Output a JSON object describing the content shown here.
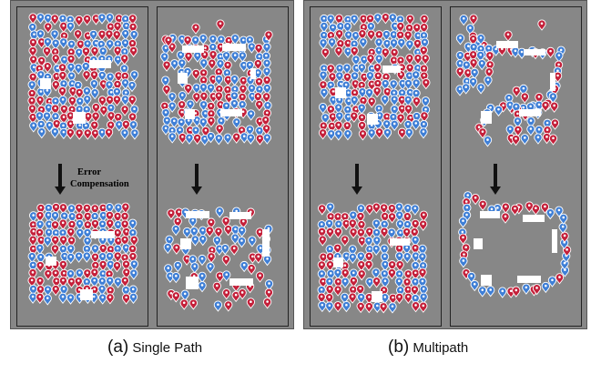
{
  "captions": {
    "a_letter": "(a)",
    "a_text": "Single Path",
    "b_letter": "(b)",
    "b_text": "Multipath"
  },
  "annotation": {
    "line1": "Error",
    "line2": "Compensation"
  },
  "colors": {
    "background": "#878787",
    "marker_red": "#c4203a",
    "marker_blue": "#3f7fd6",
    "obstacle": "#ffffff",
    "arrow": "#111111"
  },
  "icons": {
    "marker": "map-pin-icon",
    "arrow": "arrow-down-icon",
    "obstacle": "obstacle-block"
  }
}
